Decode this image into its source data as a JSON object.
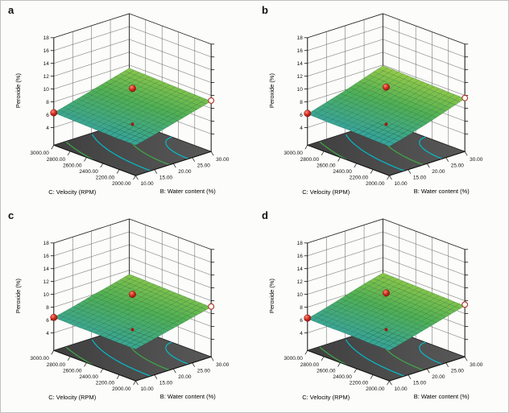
{
  "figure": {
    "background": "#fcfcfa",
    "border_color": "#c0c0c0",
    "style": {
      "surface_low_color": "#36a3a0",
      "surface_mid_color": "#4fb054",
      "surface_high_color": "#a2cf45",
      "floor_color_dark": "#3f3f3f",
      "floor_color_light": "#585858",
      "contour_color_1": "#00c2d1",
      "contour_color_2": "#3fae49",
      "point_color": "#cf2b1f",
      "axis_color": "#111111"
    }
  },
  "chart_data": [
    {
      "type": "surface3d",
      "panel_label": "a",
      "z_axis": {
        "label": "Peroxide (%)",
        "min": 4,
        "max": 18,
        "ticks": [
          4,
          6,
          8,
          10,
          12,
          14,
          16,
          18
        ]
      },
      "x_axis": {
        "label": "B: Water content (%)",
        "min": 10,
        "max": 30,
        "tick_labels": [
          "10.00",
          "15.00",
          "20.00",
          "25.00",
          "30.00"
        ]
      },
      "y_axis": {
        "label": "C: Velocity (RPM)",
        "min": 2000,
        "max": 3000,
        "tick_labels": [
          "2000.00",
          "2200.00",
          "2400.00",
          "2600.00",
          "2800.00",
          "3000.00"
        ]
      },
      "surface": {
        "water_values": [
          10,
          15,
          20,
          25,
          30
        ],
        "velocity_values": [
          2000,
          2250,
          2500,
          2750,
          3000
        ],
        "peroxide_grid": [
          [
            6.0,
            6.7,
            7.5,
            8.3,
            9.1
          ],
          [
            6.0,
            6.8,
            7.6,
            8.4,
            9.2
          ],
          [
            6.1,
            6.9,
            7.7,
            8.5,
            9.3
          ],
          [
            6.2,
            7.0,
            7.8,
            8.6,
            9.4
          ],
          [
            6.3,
            7.1,
            7.9,
            8.7,
            9.5
          ]
        ]
      },
      "design_points": [
        {
          "water": 20,
          "velocity": 2500,
          "peroxide": 10.6,
          "style": "filled"
        },
        {
          "water": 10,
          "velocity": 3000,
          "peroxide": 6.3,
          "style": "filled"
        },
        {
          "water": 30,
          "velocity": 2000,
          "peroxide": 9.2,
          "style": "open"
        },
        {
          "water": 20,
          "velocity": 2500,
          "peroxide": 5.0,
          "style": "small"
        }
      ]
    },
    {
      "type": "surface3d",
      "panel_label": "b",
      "z_axis": {
        "label": "Peroxide (%)",
        "min": 4,
        "max": 18,
        "ticks": [
          4,
          6,
          8,
          10,
          12,
          14,
          16,
          18
        ]
      },
      "x_axis": {
        "label": "B: Water content (%)",
        "min": 10,
        "max": 30,
        "tick_labels": [
          "10.00",
          "15.00",
          "20.00",
          "25.00",
          "30.00"
        ]
      },
      "y_axis": {
        "label": "C: Velocity (RPM)",
        "min": 2000,
        "max": 3000,
        "tick_labels": [
          "2000.00",
          "2200.00",
          "2400.00",
          "2600.00",
          "2800.00",
          "3000.00"
        ]
      },
      "surface": {
        "water_values": [
          10,
          15,
          20,
          25,
          30
        ],
        "velocity_values": [
          2000,
          2250,
          2500,
          2750,
          3000
        ],
        "peroxide_grid": [
          [
            5.8,
            6.6,
            7.5,
            8.5,
            9.5
          ],
          [
            5.9,
            6.7,
            7.6,
            8.6,
            9.6
          ],
          [
            6.0,
            6.8,
            7.7,
            8.7,
            9.7
          ],
          [
            6.0,
            6.9,
            7.8,
            8.8,
            9.8
          ],
          [
            6.1,
            7.0,
            7.9,
            8.9,
            9.9
          ]
        ]
      },
      "design_points": [
        {
          "water": 20,
          "velocity": 2500,
          "peroxide": 10.8,
          "style": "filled"
        },
        {
          "water": 10,
          "velocity": 3000,
          "peroxide": 6.2,
          "style": "filled"
        },
        {
          "water": 30,
          "velocity": 2000,
          "peroxide": 9.6,
          "style": "open"
        },
        {
          "water": 20,
          "velocity": 2500,
          "peroxide": 5.0,
          "style": "small"
        }
      ]
    },
    {
      "type": "surface3d",
      "panel_label": "c",
      "z_axis": {
        "label": "Peroxide (%)",
        "min": 4,
        "max": 18,
        "ticks": [
          4,
          6,
          8,
          10,
          12,
          14,
          16,
          18
        ]
      },
      "x_axis": {
        "label": "B: Water content (%)",
        "min": 10,
        "max": 30,
        "tick_labels": [
          "10.00",
          "15.00",
          "20.00",
          "25.00",
          "30.00"
        ]
      },
      "y_axis": {
        "label": "C: Velocity (RPM)",
        "min": 2000,
        "max": 3000,
        "tick_labels": [
          "2000.00",
          "2200.00",
          "2400.00",
          "2600.00",
          "2800.00",
          "3000.00"
        ]
      },
      "surface": {
        "water_values": [
          10,
          15,
          20,
          25,
          30
        ],
        "velocity_values": [
          2000,
          2250,
          2500,
          2750,
          3000
        ],
        "peroxide_grid": [
          [
            6.2,
            6.9,
            7.6,
            8.3,
            9.0
          ],
          [
            6.2,
            6.9,
            7.7,
            8.4,
            9.1
          ],
          [
            6.3,
            7.0,
            7.8,
            8.5,
            9.2
          ],
          [
            6.3,
            7.1,
            7.8,
            8.6,
            9.3
          ],
          [
            6.4,
            7.1,
            7.9,
            8.6,
            9.4
          ]
        ]
      },
      "design_points": [
        {
          "water": 20,
          "velocity": 2500,
          "peroxide": 10.5,
          "style": "filled"
        },
        {
          "water": 10,
          "velocity": 3000,
          "peroxide": 6.4,
          "style": "filled"
        },
        {
          "water": 30,
          "velocity": 2000,
          "peroxide": 9.1,
          "style": "open"
        },
        {
          "water": 20,
          "velocity": 2500,
          "peroxide": 5.0,
          "style": "small"
        }
      ]
    },
    {
      "type": "surface3d",
      "panel_label": "d",
      "z_axis": {
        "label": "Peroxide (%)",
        "min": 4,
        "max": 18,
        "ticks": [
          4,
          6,
          8,
          10,
          12,
          14,
          16,
          18
        ]
      },
      "x_axis": {
        "label": "B: Water content (%)",
        "min": 10,
        "max": 30,
        "tick_labels": [
          "10.00",
          "15.00",
          "20.00",
          "25.00",
          "30.00"
        ]
      },
      "y_axis": {
        "label": "C: Velocity (RPM)",
        "min": 2000,
        "max": 3000,
        "tick_labels": [
          "2000.00",
          "2200.00",
          "2400.00",
          "2600.00",
          "2800.00",
          "3000.00"
        ]
      },
      "surface": {
        "water_values": [
          10,
          15,
          20,
          25,
          30
        ],
        "velocity_values": [
          2000,
          2250,
          2500,
          2750,
          3000
        ],
        "peroxide_grid": [
          [
            6.0,
            6.8,
            7.6,
            8.4,
            9.2
          ],
          [
            6.0,
            6.8,
            7.7,
            8.5,
            9.3
          ],
          [
            6.1,
            6.9,
            7.8,
            8.6,
            9.4
          ],
          [
            6.1,
            7.0,
            7.8,
            8.7,
            9.5
          ],
          [
            6.2,
            7.0,
            7.9,
            8.8,
            9.6
          ]
        ]
      },
      "design_points": [
        {
          "water": 20,
          "velocity": 2500,
          "peroxide": 10.7,
          "style": "filled"
        },
        {
          "water": 10,
          "velocity": 3000,
          "peroxide": 6.3,
          "style": "filled"
        },
        {
          "water": 30,
          "velocity": 2000,
          "peroxide": 9.4,
          "style": "open"
        },
        {
          "water": 20,
          "velocity": 2500,
          "peroxide": 5.0,
          "style": "small"
        }
      ]
    }
  ]
}
